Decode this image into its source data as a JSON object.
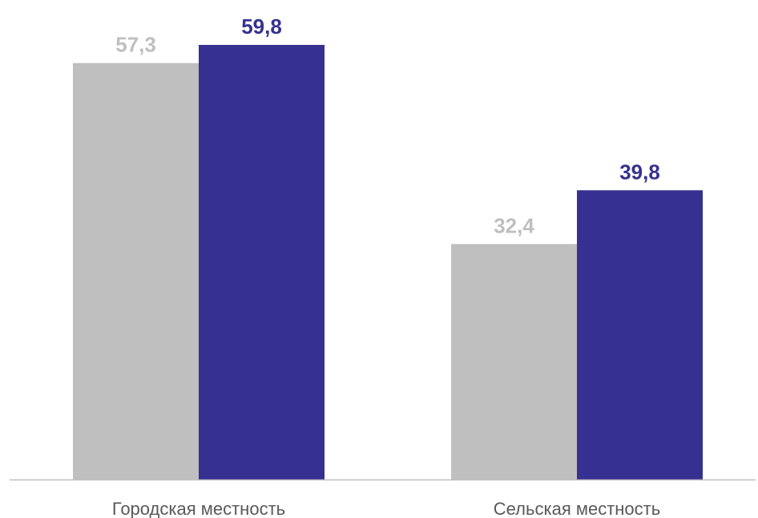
{
  "chart_data": {
    "type": "bar",
    "categories": [
      "Городская местность",
      "Сельская местность"
    ],
    "series": [
      {
        "values": [
          57.3,
          32.4
        ],
        "color": "#bfbfbf",
        "value_labels": [
          "57,3",
          "32,4"
        ]
      },
      {
        "values": [
          59.8,
          39.8
        ],
        "color": "#363191",
        "value_labels": [
          "59,8",
          "39,8"
        ]
      }
    ],
    "ylim": [
      0,
      62
    ],
    "grid": false,
    "legend": "none"
  }
}
